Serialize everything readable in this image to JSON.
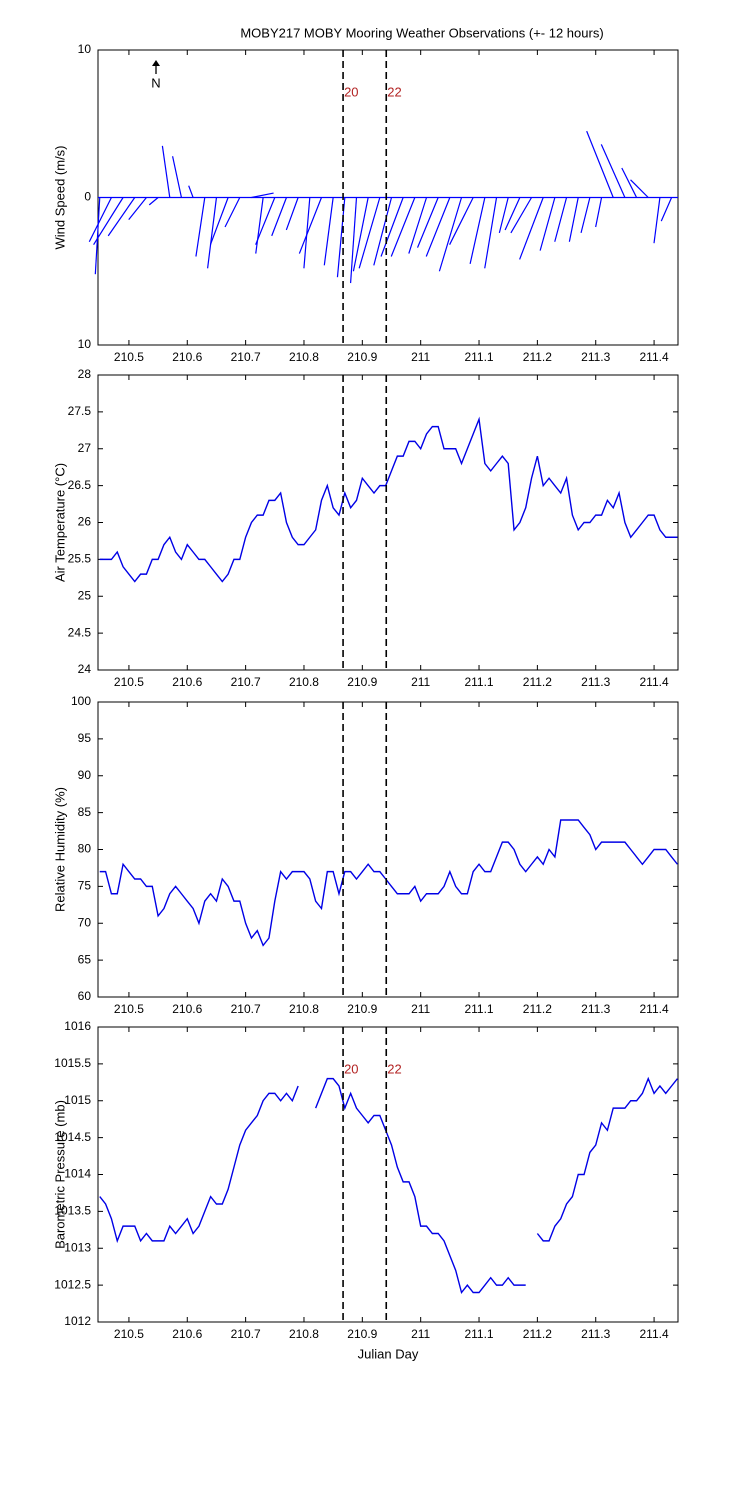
{
  "chart_data": [
    {
      "type": "quiver",
      "title": "MOBY217 MOBY Mooring Weather Observations (+- 12 hours)",
      "ylabel": "Wind Speed (m/s)",
      "north_label": "N",
      "color": "#0000ff",
      "x": [
        210.45,
        210.47,
        210.49,
        210.51,
        210.53,
        210.55,
        210.57,
        210.59,
        210.61,
        210.63,
        210.65,
        210.67,
        210.69,
        210.71,
        210.73,
        210.75,
        210.77,
        210.79,
        210.81,
        210.83,
        210.85,
        210.87,
        210.89,
        210.91,
        210.93,
        210.95,
        210.97,
        210.99,
        211.01,
        211.03,
        211.05,
        211.07,
        211.09,
        211.11,
        211.13,
        211.15,
        211.17,
        211.19,
        211.21,
        211.23,
        211.25,
        211.27,
        211.29,
        211.31,
        211.33,
        211.35,
        211.37,
        211.39,
        211.41,
        211.43
      ],
      "u": [
        -0.3,
        -1.5,
        -2.0,
        -1.8,
        -1.2,
        -0.6,
        -0.5,
        -0.6,
        -0.3,
        -0.6,
        -0.6,
        -1.2,
        -1.0,
        1.5,
        -0.5,
        -1.3,
        -1.0,
        -0.8,
        -0.4,
        -1.5,
        -0.6,
        -0.5,
        -0.4,
        -1.0,
        -1.4,
        -1.2,
        -1.5,
        -1.6,
        -1.2,
        -1.4,
        -1.6,
        -1.5,
        -1.6,
        -1.0,
        -0.8,
        -0.6,
        -1.0,
        -1.4,
        -1.6,
        -1.0,
        -0.8,
        -0.6,
        -0.6,
        -0.4,
        -1.8,
        -1.6,
        -1.0,
        -1.2,
        -0.4,
        -0.7
      ],
      "v": [
        -5.2,
        -3.0,
        -3.2,
        -2.6,
        -1.5,
        -0.5,
        3.5,
        2.8,
        0.8,
        -4.0,
        -4.8,
        -3.2,
        -2.0,
        0.3,
        -3.8,
        -3.2,
        -2.6,
        -2.2,
        -4.8,
        -3.8,
        -4.6,
        -5.4,
        -5.8,
        -5.0,
        -4.8,
        -4.6,
        -4.0,
        -4.0,
        -3.8,
        -3.4,
        -4.0,
        -5.0,
        -3.2,
        -4.5,
        -4.8,
        -2.4,
        -2.2,
        -2.4,
        -4.2,
        -3.6,
        -3.0,
        -3.0,
        -2.4,
        -2.0,
        4.5,
        3.6,
        2.0,
        1.2,
        -3.1,
        -1.6
      ],
      "xlim": [
        210.447,
        211.441
      ],
      "xticks": [
        210.5,
        210.6,
        210.7,
        210.8,
        210.9,
        211,
        211.1,
        211.2,
        211.3,
        211.4
      ],
      "ylim": [
        -10,
        10
      ],
      "yticks": [
        {
          "value": -10,
          "label": "10"
        },
        0,
        10
      ],
      "vlines": [
        210.867,
        210.941
      ],
      "vline_labels": [
        "20",
        "22"
      ],
      "vline_label_color": "#b22222"
    },
    {
      "type": "line",
      "ylabel": "Air Temperature (°C)",
      "color": "#0000e6",
      "x": [
        210.45,
        210.46,
        210.47,
        210.48,
        210.49,
        210.5,
        210.51,
        210.52,
        210.53,
        210.54,
        210.55,
        210.56,
        210.57,
        210.58,
        210.59,
        210.6,
        210.61,
        210.62,
        210.63,
        210.64,
        210.65,
        210.66,
        210.67,
        210.68,
        210.69,
        210.7,
        210.71,
        210.72,
        210.73,
        210.74,
        210.75,
        210.76,
        210.77,
        210.78,
        210.79,
        210.8,
        210.81,
        210.82,
        210.83,
        210.84,
        210.85,
        210.86,
        210.87,
        210.88,
        210.89,
        210.9,
        210.91,
        210.92,
        210.93,
        210.94,
        210.95,
        210.96,
        210.97,
        210.98,
        210.99,
        211,
        211.01,
        211.02,
        211.03,
        211.04,
        211.05,
        211.06,
        211.07,
        211.08,
        211.09,
        211.1,
        211.11,
        211.12,
        211.13,
        211.14,
        211.15,
        211.16,
        211.17,
        211.18,
        211.19,
        211.2,
        211.21,
        211.22,
        211.23,
        211.24,
        211.25,
        211.26,
        211.27,
        211.28,
        211.29,
        211.3,
        211.31,
        211.32,
        211.33,
        211.34,
        211.35,
        211.36,
        211.37,
        211.38,
        211.39,
        211.4,
        211.41,
        211.42,
        211.43,
        211.44
      ],
      "values": [
        25.5,
        25.5,
        25.5,
        25.6,
        25.4,
        25.3,
        25.2,
        25.3,
        25.3,
        25.5,
        25.5,
        25.7,
        25.8,
        25.6,
        25.5,
        25.7,
        25.6,
        25.5,
        25.5,
        25.4,
        25.3,
        25.2,
        25.3,
        25.5,
        25.5,
        25.8,
        26.0,
        26.1,
        26.1,
        26.3,
        26.3,
        26.4,
        26.0,
        25.8,
        25.7,
        25.7,
        25.8,
        25.9,
        26.3,
        26.5,
        26.2,
        26.1,
        26.4,
        26.2,
        26.3,
        26.6,
        26.5,
        26.4,
        26.5,
        26.5,
        26.7,
        26.9,
        26.9,
        27.1,
        27.1,
        27.0,
        27.2,
        27.3,
        27.3,
        27.0,
        27.0,
        27.0,
        26.8,
        27.0,
        27.2,
        27.4,
        26.8,
        26.7,
        26.8,
        26.9,
        26.8,
        25.9,
        26.0,
        26.2,
        26.6,
        26.9,
        26.5,
        26.6,
        26.5,
        26.4,
        26.6,
        26.1,
        25.9,
        26.0,
        26.0,
        26.1,
        26.1,
        26.3,
        26.2,
        26.4,
        26.0,
        25.8,
        25.9,
        26.0,
        26.1,
        26.1,
        25.9,
        25.8,
        25.8,
        25.8
      ],
      "xlim": [
        210.447,
        211.441
      ],
      "xticks": [
        210.5,
        210.6,
        210.7,
        210.8,
        210.9,
        211,
        211.1,
        211.2,
        211.3,
        211.4
      ],
      "ylim": [
        24,
        28
      ],
      "yticks": [
        24,
        24.5,
        25,
        25.5,
        26,
        26.5,
        27,
        27.5,
        28
      ],
      "vlines": [
        210.867,
        210.941
      ]
    },
    {
      "type": "line",
      "ylabel": "Relative Humidity (%)",
      "color": "#0000e6",
      "x": [
        210.45,
        210.46,
        210.47,
        210.48,
        210.49,
        210.5,
        210.51,
        210.52,
        210.53,
        210.54,
        210.55,
        210.56,
        210.57,
        210.58,
        210.59,
        210.6,
        210.61,
        210.62,
        210.63,
        210.64,
        210.65,
        210.66,
        210.67,
        210.68,
        210.69,
        210.7,
        210.71,
        210.72,
        210.73,
        210.74,
        210.75,
        210.76,
        210.77,
        210.78,
        210.79,
        210.8,
        210.81,
        210.82,
        210.83,
        210.84,
        210.85,
        210.86,
        210.87,
        210.88,
        210.89,
        210.9,
        210.91,
        210.92,
        210.93,
        210.94,
        210.95,
        210.96,
        210.97,
        210.98,
        210.99,
        211,
        211.01,
        211.02,
        211.03,
        211.04,
        211.05,
        211.06,
        211.07,
        211.08,
        211.09,
        211.1,
        211.11,
        211.12,
        211.13,
        211.14,
        211.15,
        211.16,
        211.17,
        211.18,
        211.19,
        211.2,
        211.21,
        211.22,
        211.23,
        211.24,
        211.25,
        211.26,
        211.27,
        211.28,
        211.29,
        211.3,
        211.31,
        211.32,
        211.33,
        211.34,
        211.35,
        211.36,
        211.37,
        211.38,
        211.39,
        211.4,
        211.41,
        211.42,
        211.43,
        211.44
      ],
      "values": [
        77,
        77,
        74,
        74,
        78,
        77,
        76,
        76,
        75,
        75,
        71,
        72,
        74,
        75,
        74,
        73,
        72,
        70,
        73,
        74,
        73,
        76,
        75,
        73,
        73,
        70,
        68,
        69,
        67,
        68,
        73,
        77,
        76,
        77,
        77,
        77,
        76,
        73,
        72,
        77,
        77,
        74,
        77,
        77,
        76,
        77,
        78,
        77,
        77,
        76,
        75,
        74,
        74,
        74,
        75,
        73,
        74,
        74,
        74,
        75,
        77,
        75,
        74,
        74,
        77,
        78,
        77,
        77,
        79,
        81,
        81,
        80,
        78,
        77,
        78,
        79,
        78,
        80,
        79,
        84,
        84,
        84,
        84,
        83,
        82,
        80,
        81,
        81,
        81,
        81,
        81,
        80,
        79,
        78,
        79,
        80,
        80,
        80,
        79,
        78
      ],
      "xlim": [
        210.447,
        211.441
      ],
      "xticks": [
        210.5,
        210.6,
        210.7,
        210.8,
        210.9,
        211,
        211.1,
        211.2,
        211.3,
        211.4
      ],
      "ylim": [
        60,
        100
      ],
      "yticks": [
        60,
        65,
        70,
        75,
        80,
        85,
        90,
        95,
        100
      ],
      "vlines": [
        210.867,
        210.941
      ]
    },
    {
      "type": "line",
      "ylabel": "Barometric Pressure (mb)",
      "xlabel": "Julian Day",
      "color": "#0000e6",
      "x": [
        210.45,
        210.46,
        210.47,
        210.48,
        210.49,
        210.5,
        210.51,
        210.52,
        210.53,
        210.54,
        210.55,
        210.56,
        210.57,
        210.58,
        210.59,
        210.6,
        210.61,
        210.62,
        210.63,
        210.64,
        210.65,
        210.66,
        210.67,
        210.68,
        210.69,
        210.7,
        210.71,
        210.72,
        210.73,
        210.74,
        210.75,
        210.76,
        210.77,
        210.78,
        210.79,
        210.8,
        210.81,
        210.82,
        210.83,
        210.84,
        210.85,
        210.86,
        210.87,
        210.88,
        210.89,
        210.9,
        210.91,
        210.92,
        210.93,
        210.94,
        210.95,
        210.96,
        210.97,
        210.98,
        210.99,
        211,
        211.01,
        211.02,
        211.03,
        211.04,
        211.05,
        211.06,
        211.07,
        211.08,
        211.09,
        211.1,
        211.11,
        211.12,
        211.13,
        211.14,
        211.15,
        211.16,
        211.17,
        211.18,
        211.19,
        211.2,
        211.21,
        211.22,
        211.23,
        211.24,
        211.25,
        211.26,
        211.27,
        211.28,
        211.29,
        211.3,
        211.31,
        211.32,
        211.33,
        211.34,
        211.35,
        211.36,
        211.37,
        211.38,
        211.39,
        211.4,
        211.41,
        211.42,
        211.43,
        211.44
      ],
      "values": [
        1013.7,
        1013.6,
        1013.4,
        1013.1,
        1013.3,
        1013.3,
        1013.3,
        1013.1,
        1013.2,
        1013.1,
        1013.1,
        1013.1,
        1013.3,
        1013.2,
        1013.3,
        1013.4,
        1013.2,
        1013.3,
        1013.5,
        1013.7,
        1013.6,
        1013.6,
        1013.8,
        1014.1,
        1014.4,
        1014.6,
        1014.7,
        1014.8,
        1015.0,
        1015.1,
        1015.1,
        1015.0,
        1015.1,
        1015.0,
        1015.2,
        null,
        null,
        1014.9,
        1015.1,
        1015.3,
        1015.3,
        1015.2,
        1014.9,
        1015.1,
        1014.9,
        1014.8,
        1014.7,
        1014.8,
        1014.8,
        1014.6,
        1014.4,
        1014.1,
        1013.9,
        1013.9,
        1013.7,
        1013.3,
        1013.3,
        1013.2,
        1013.2,
        1013.1,
        1012.9,
        1012.7,
        1012.4,
        1012.5,
        1012.4,
        1012.4,
        1012.5,
        1012.6,
        1012.5,
        1012.5,
        1012.6,
        1012.5,
        1012.5,
        1012.5,
        null,
        1013.2,
        1013.1,
        1013.1,
        1013.3,
        1013.4,
        1013.6,
        1013.7,
        1014.0,
        1014.0,
        1014.3,
        1014.4,
        1014.7,
        1014.6,
        1014.9,
        1014.9,
        1014.9,
        1015.0,
        1015.0,
        1015.1,
        1015.3,
        1015.1,
        1015.2,
        1015.1,
        1015.2,
        1015.3
      ],
      "xlim": [
        210.447,
        211.441
      ],
      "xticks": [
        210.5,
        210.6,
        210.7,
        210.8,
        210.9,
        211,
        211.1,
        211.2,
        211.3,
        211.4
      ],
      "ylim": [
        1012,
        1016
      ],
      "yticks": [
        1012,
        1012.5,
        1013,
        1013.5,
        1014,
        1014.5,
        1015,
        1015.5,
        1016
      ],
      "vlines": [
        210.867,
        210.941
      ],
      "vline_labels": [
        "20",
        "22"
      ],
      "vline_label_color": "#b22222"
    }
  ]
}
